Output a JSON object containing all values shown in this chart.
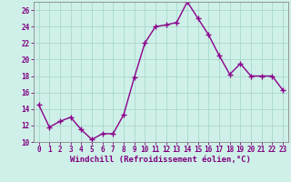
{
  "x": [
    0,
    1,
    2,
    3,
    4,
    5,
    6,
    7,
    8,
    9,
    10,
    11,
    12,
    13,
    14,
    15,
    16,
    17,
    18,
    19,
    20,
    21,
    22,
    23
  ],
  "y": [
    14.5,
    11.8,
    12.5,
    13.0,
    11.5,
    10.3,
    11.0,
    11.0,
    13.3,
    17.8,
    22.0,
    24.0,
    24.2,
    24.5,
    27.0,
    25.0,
    23.0,
    20.5,
    18.2,
    19.5,
    18.0,
    18.0,
    18.0,
    16.3
  ],
  "line_color": "#8B008B",
  "marker": "+",
  "marker_size": 4,
  "marker_linewidth": 1.0,
  "line_width": 1.0,
  "bg_color": "#cef0e8",
  "grid_color": "#aad8cc",
  "xlabel": "Windchill (Refroidissement éolien,°C)",
  "ylabel": "",
  "xlim": [
    -0.5,
    23.5
  ],
  "ylim": [
    10,
    27
  ],
  "yticks": [
    10,
    12,
    14,
    16,
    18,
    20,
    22,
    24,
    26
  ],
  "xticks": [
    0,
    1,
    2,
    3,
    4,
    5,
    6,
    7,
    8,
    9,
    10,
    11,
    12,
    13,
    14,
    15,
    16,
    17,
    18,
    19,
    20,
    21,
    22,
    23
  ],
  "label_color": "#800080",
  "tick_fontsize": 5.5,
  "xlabel_fontsize": 6.5,
  "spine_color": "#888888"
}
